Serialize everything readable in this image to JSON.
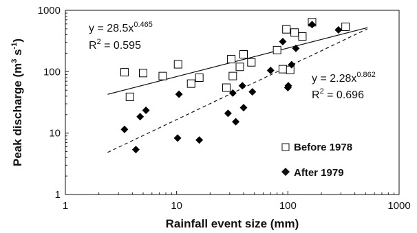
{
  "chart_data": {
    "type": "scatter",
    "xlabel": "Rainfall event size (mm)",
    "ylabel_main": "Peak discharge (m",
    "ylabel_sup1": "3",
    "ylabel_mid": " s",
    "ylabel_sup2": "-1",
    "ylabel_end": ")",
    "x_scale": "log",
    "y_scale": "log",
    "xlim": [
      1,
      1000
    ],
    "ylim": [
      1,
      1000
    ],
    "x_ticks": [
      1,
      10,
      100,
      1000
    ],
    "x_tick_labels": [
      "1",
      "10",
      "100",
      "1000"
    ],
    "y_ticks": [
      1,
      10,
      100,
      1000
    ],
    "y_tick_labels": [
      "1",
      "10",
      "100",
      "1000"
    ],
    "legend_position": "bottom-right",
    "series": [
      {
        "name": "Before 1978",
        "marker": "open-square",
        "color": "#000000",
        "points": [
          [
            3.4,
            98
          ],
          [
            3.8,
            39
          ],
          [
            5.0,
            95
          ],
          [
            7.5,
            85
          ],
          [
            10.3,
            132
          ],
          [
            13.5,
            64
          ],
          [
            16,
            80
          ],
          [
            28,
            55
          ],
          [
            31,
            160
          ],
          [
            32,
            85
          ],
          [
            37,
            120
          ],
          [
            40,
            192
          ],
          [
            47,
            142
          ],
          [
            80,
            225
          ],
          [
            90,
            110
          ],
          [
            97,
            490
          ],
          [
            105,
            107
          ],
          [
            115,
            435
          ],
          [
            135,
            375
          ],
          [
            165,
            640
          ],
          [
            330,
            540
          ]
        ]
      },
      {
        "name": "After 1979",
        "marker": "filled-diamond",
        "color": "#000000",
        "points": [
          [
            3.4,
            11.5
          ],
          [
            4.3,
            5.4
          ],
          [
            4.7,
            18.5
          ],
          [
            5.3,
            23.5
          ],
          [
            10.2,
            8.3
          ],
          [
            10.5,
            43
          ],
          [
            16,
            7.7
          ],
          [
            29,
            21
          ],
          [
            32,
            45
          ],
          [
            34,
            15.3
          ],
          [
            39,
            59
          ],
          [
            40,
            26
          ],
          [
            48,
            47
          ],
          [
            70,
            105
          ],
          [
            90,
            310
          ],
          [
            100,
            55
          ],
          [
            101,
            59
          ],
          [
            108,
            130
          ],
          [
            118,
            240
          ],
          [
            165,
            585
          ],
          [
            285,
            480
          ]
        ]
      }
    ],
    "fits": [
      {
        "series": "Before 1978",
        "coef": 28.5,
        "exp": 0.465,
        "line_style": "solid",
        "x_range": [
          2.4,
          520
        ],
        "eq_prefix": "y = 28.5x",
        "eq_exp": "0.465",
        "r2_prefix": "R",
        "r2_sup": "2",
        "r2_suffix": " = 0.595"
      },
      {
        "series": "After 1979",
        "coef": 2.28,
        "exp": 0.862,
        "line_style": "dashed",
        "x_range": [
          2.4,
          520
        ],
        "eq_prefix": "y = 2.28x",
        "eq_exp": "0.862",
        "r2_prefix": "R",
        "r2_sup": "2",
        "r2_suffix": " = 0.696"
      }
    ]
  }
}
